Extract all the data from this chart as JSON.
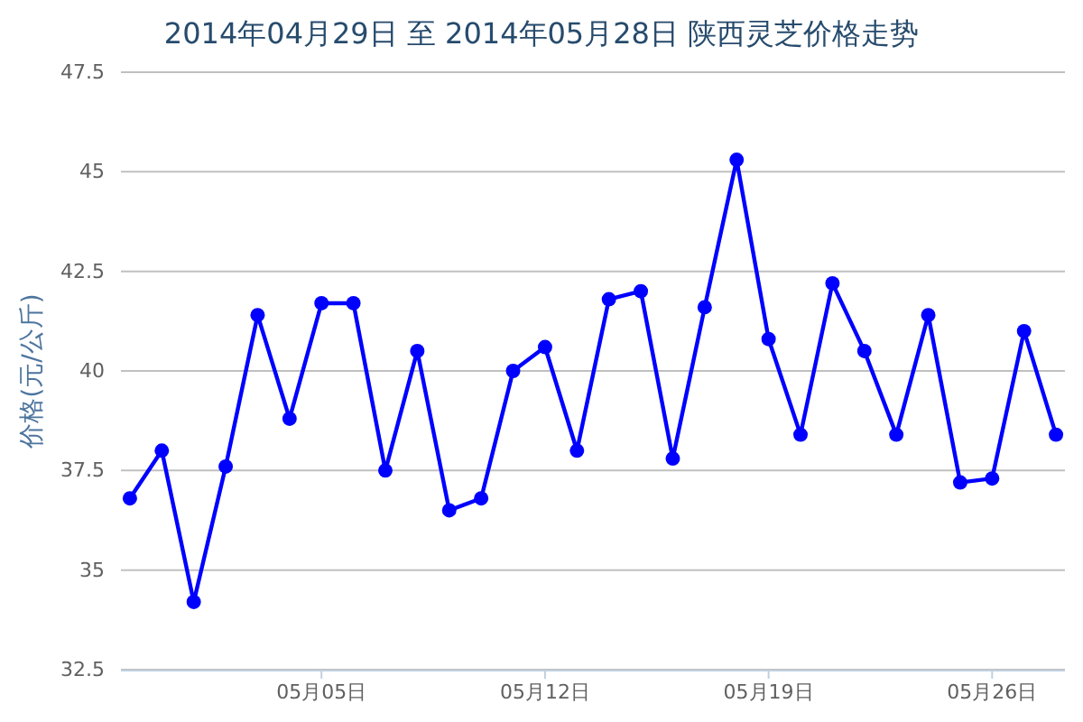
{
  "chart_data": {
    "type": "line",
    "title": "2014年04月29日 至 2014年05月28日 陕西灵芝价格走势",
    "ylabel": "价格(元/公斤)",
    "categories": [
      null,
      null,
      null,
      null,
      null,
      null,
      "05月05日",
      null,
      null,
      null,
      null,
      null,
      null,
      "05月12日",
      null,
      null,
      null,
      null,
      null,
      null,
      "05月19日",
      null,
      null,
      null,
      null,
      null,
      null,
      "05月26日",
      null,
      null
    ],
    "values": [
      36.8,
      38.0,
      34.2,
      37.6,
      41.4,
      38.8,
      41.7,
      41.7,
      37.5,
      40.5,
      36.5,
      36.8,
      40.0,
      40.6,
      38.0,
      41.8,
      42.0,
      37.8,
      41.6,
      45.3,
      40.8,
      38.4,
      42.2,
      40.5,
      38.4,
      41.4,
      37.2,
      37.3,
      41.0,
      38.4
    ],
    "color": "#0000ff",
    "ylim": [
      32.5,
      47.5
    ],
    "yticks": [
      32.5,
      35,
      37.5,
      40,
      42.5,
      45,
      47.5
    ],
    "grid": "y",
    "marker": "circle",
    "line_style": "solid"
  }
}
